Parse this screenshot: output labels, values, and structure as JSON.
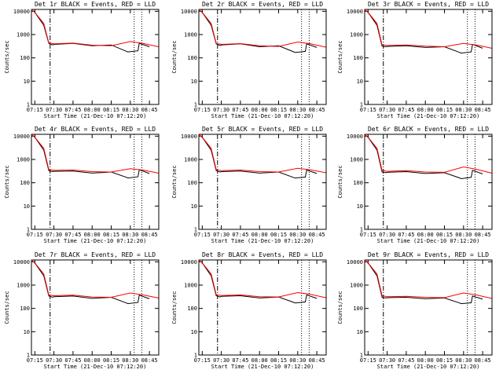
{
  "chart_data": [
    {
      "type": "line",
      "title": "Det 1r BLACK = Events, RED = LLD",
      "xlabel": "Start Time (21-Dec-10 07:12:20)",
      "ylabel": "Counts/sec",
      "x_ticks": [
        "07:15",
        "07:30",
        "07:45",
        "08:00",
        "08:15",
        "08:30",
        "08:45"
      ],
      "y_ticks": [
        "1",
        "10",
        "100",
        "1000",
        "10000"
      ],
      "y_scale": "log",
      "xlim": [
        "07:12:20",
        "08:52:20"
      ],
      "ylim": [
        1,
        12000
      ],
      "events_x": [
        "07:15",
        "07:22",
        "07:26",
        "07:29",
        "07:30",
        "07:45",
        "08:00",
        "08:15",
        "08:27",
        "08:28",
        "08:36",
        "08:37",
        "08:45"
      ],
      "events_y": [
        9000,
        2500,
        420,
        360,
        380,
        420,
        330,
        360,
        190,
        180,
        200,
        420,
        300
      ],
      "lld_x": [
        "07:12:20",
        "07:15",
        "07:22",
        "07:26",
        "07:30",
        "07:45",
        "08:00",
        "08:15",
        "08:30",
        "08:40",
        "08:52"
      ],
      "lld_y": [
        12000,
        9000,
        3000,
        440,
        400,
        430,
        350,
        330,
        500,
        420,
        300
      ],
      "vlines": [
        {
          "x": "07:27",
          "style": "dash-dot"
        },
        {
          "x": "08:33",
          "style": "dotted"
        },
        {
          "x": "08:39",
          "style": "dotted"
        }
      ]
    },
    {
      "type": "line",
      "title": "Det 2r BLACK = Events, RED = LLD",
      "xlabel": "Start Time (21-Dec-10 07:12:20)",
      "ylabel": "Counts/sec",
      "x_ticks": [
        "07:15",
        "07:30",
        "07:45",
        "08:00",
        "08:15",
        "08:30",
        "08:45"
      ],
      "y_ticks": [
        "1",
        "10",
        "100",
        "1000",
        "10000"
      ],
      "y_scale": "log",
      "xlim": [
        "07:12:20",
        "08:52:20"
      ],
      "ylim": [
        1,
        12000
      ],
      "events_x": [
        "07:15",
        "07:22",
        "07:26",
        "07:29",
        "07:30",
        "07:45",
        "08:00",
        "08:15",
        "08:27",
        "08:28",
        "08:36",
        "08:37",
        "08:45"
      ],
      "events_y": [
        9000,
        2500,
        400,
        340,
        360,
        400,
        300,
        330,
        180,
        170,
        190,
        400,
        280
      ],
      "lld_x": [
        "07:12:20",
        "07:15",
        "07:22",
        "07:26",
        "07:30",
        "07:45",
        "08:00",
        "08:15",
        "08:30",
        "08:40",
        "08:52"
      ],
      "lld_y": [
        12000,
        9000,
        3000,
        420,
        380,
        410,
        330,
        310,
        480,
        400,
        290
      ],
      "vlines": [
        {
          "x": "07:27",
          "style": "dash-dot"
        },
        {
          "x": "08:33",
          "style": "dotted"
        },
        {
          "x": "08:39",
          "style": "dotted"
        }
      ]
    },
    {
      "type": "line",
      "title": "Det 3r BLACK = Events, RED = LLD",
      "xlabel": "Start Time (21-Dec-10 07:12:20)",
      "ylabel": "Counts/sec",
      "x_ticks": [
        "07:15",
        "07:30",
        "07:45",
        "08:00",
        "08:15",
        "08:30",
        "08:45"
      ],
      "y_ticks": [
        "1",
        "10",
        "100",
        "1000",
        "10000"
      ],
      "y_scale": "log",
      "xlim": [
        "07:12:20",
        "08:52:20"
      ],
      "ylim": [
        1,
        12000
      ],
      "events_x": [
        "07:15",
        "07:22",
        "07:26",
        "07:29",
        "07:30",
        "07:45",
        "08:00",
        "08:15",
        "08:27",
        "08:28",
        "08:36",
        "08:37",
        "08:45"
      ],
      "events_y": [
        9000,
        2500,
        320,
        300,
        310,
        330,
        280,
        300,
        170,
        160,
        180,
        380,
        260
      ],
      "lld_x": [
        "07:12:20",
        "07:15",
        "07:22",
        "07:26",
        "07:30",
        "07:45",
        "08:00",
        "08:15",
        "08:30",
        "08:40",
        "08:52"
      ],
      "lld_y": [
        12000,
        9000,
        3000,
        360,
        340,
        360,
        320,
        300,
        420,
        360,
        260
      ],
      "vlines": [
        {
          "x": "07:27",
          "style": "dash-dot"
        },
        {
          "x": "08:33",
          "style": "dotted"
        },
        {
          "x": "08:39",
          "style": "dotted"
        }
      ]
    },
    {
      "type": "line",
      "title": "Det 4r BLACK = Events, RED = LLD",
      "xlabel": "Start Time (21-Dec-10 07:12:20)",
      "ylabel": "Counts/sec",
      "x_ticks": [
        "07:15",
        "07:30",
        "07:45",
        "08:00",
        "08:15",
        "08:30",
        "08:45"
      ],
      "y_ticks": [
        "1",
        "10",
        "100",
        "1000",
        "10000"
      ],
      "y_scale": "log",
      "xlim": [
        "07:12:20",
        "08:52:20"
      ],
      "ylim": [
        1,
        12000
      ],
      "events_x": [
        "07:15",
        "07:22",
        "07:26",
        "07:29",
        "07:30",
        "07:45",
        "08:00",
        "08:15",
        "08:27",
        "08:28",
        "08:36",
        "08:37",
        "08:45"
      ],
      "events_y": [
        9000,
        2500,
        330,
        300,
        310,
        320,
        260,
        290,
        170,
        160,
        180,
        360,
        250
      ],
      "lld_x": [
        "07:12:20",
        "07:15",
        "07:22",
        "07:26",
        "07:30",
        "07:45",
        "08:00",
        "08:15",
        "08:30",
        "08:40",
        "08:52"
      ],
      "lld_y": [
        12000,
        9000,
        3000,
        370,
        340,
        350,
        300,
        290,
        400,
        350,
        260
      ],
      "vlines": [
        {
          "x": "07:27",
          "style": "dash-dot"
        },
        {
          "x": "08:33",
          "style": "dotted"
        },
        {
          "x": "08:39",
          "style": "dotted"
        }
      ]
    },
    {
      "type": "line",
      "title": "Det 5r BLACK = Events, RED = LLD",
      "xlabel": "Start Time (21-Dec-10 07:12:20)",
      "ylabel": "Counts/sec",
      "x_ticks": [
        "07:15",
        "07:30",
        "07:45",
        "08:00",
        "08:15",
        "08:30",
        "08:45"
      ],
      "y_ticks": [
        "1",
        "10",
        "100",
        "1000",
        "10000"
      ],
      "y_scale": "log",
      "xlim": [
        "07:12:20",
        "08:52:20"
      ],
      "ylim": [
        1,
        12000
      ],
      "events_x": [
        "07:15",
        "07:22",
        "07:26",
        "07:29",
        "07:30",
        "07:45",
        "08:00",
        "08:15",
        "08:27",
        "08:28",
        "08:36",
        "08:37",
        "08:45"
      ],
      "events_y": [
        9000,
        2500,
        330,
        290,
        300,
        320,
        260,
        290,
        165,
        160,
        175,
        350,
        250
      ],
      "lld_x": [
        "07:12:20",
        "07:15",
        "07:22",
        "07:26",
        "07:30",
        "07:45",
        "08:00",
        "08:15",
        "08:30",
        "08:40",
        "08:52"
      ],
      "lld_y": [
        12000,
        9000,
        3000,
        370,
        330,
        350,
        300,
        290,
        420,
        360,
        270
      ],
      "vlines": [
        {
          "x": "07:27",
          "style": "dash-dot"
        },
        {
          "x": "08:33",
          "style": "dotted"
        },
        {
          "x": "08:39",
          "style": "dotted"
        }
      ]
    },
    {
      "type": "line",
      "title": "Det 6r BLACK = Events, RED = LLD",
      "xlabel": "Start Time (21-Dec-10 07:12:20)",
      "ylabel": "Counts/sec",
      "x_ticks": [
        "07:15",
        "07:30",
        "07:45",
        "08:00",
        "08:15",
        "08:30",
        "08:45"
      ],
      "y_ticks": [
        "1",
        "10",
        "100",
        "1000",
        "10000"
      ],
      "y_scale": "log",
      "xlim": [
        "07:12:20",
        "08:52:20"
      ],
      "ylim": [
        1,
        12000
      ],
      "events_x": [
        "07:15",
        "07:22",
        "07:26",
        "07:29",
        "07:30",
        "07:45",
        "08:00",
        "08:15",
        "08:27",
        "08:28",
        "08:36",
        "08:37",
        "08:45"
      ],
      "events_y": [
        9000,
        2500,
        290,
        270,
        280,
        300,
        250,
        270,
        160,
        150,
        170,
        340,
        240
      ],
      "lld_x": [
        "07:12:20",
        "07:15",
        "07:22",
        "07:26",
        "07:30",
        "07:45",
        "08:00",
        "08:15",
        "08:30",
        "08:40",
        "08:52"
      ],
      "lld_y": [
        12000,
        9000,
        3000,
        340,
        310,
        330,
        290,
        280,
        480,
        380,
        260
      ],
      "vlines": [
        {
          "x": "07:27",
          "style": "dash-dot"
        },
        {
          "x": "08:33",
          "style": "dotted"
        },
        {
          "x": "08:39",
          "style": "dotted"
        }
      ]
    },
    {
      "type": "line",
      "title": "Det 7r BLACK = Events, RED = LLD",
      "xlabel": "Start Time (21-Dec-10 07:12:20)",
      "ylabel": "Counts/sec",
      "x_ticks": [
        "07:15",
        "07:30",
        "07:45",
        "08:00",
        "08:15",
        "08:30",
        "08:45"
      ],
      "y_ticks": [
        "1",
        "10",
        "100",
        "1000",
        "10000"
      ],
      "y_scale": "log",
      "xlim": [
        "07:12:20",
        "08:52:20"
      ],
      "ylim": [
        1,
        12000
      ],
      "events_x": [
        "07:15",
        "07:22",
        "07:26",
        "07:29",
        "07:30",
        "07:45",
        "08:00",
        "08:15",
        "08:27",
        "08:28",
        "08:36",
        "08:37",
        "08:45"
      ],
      "events_y": [
        9000,
        2500,
        340,
        300,
        320,
        340,
        270,
        300,
        170,
        160,
        180,
        370,
        260
      ],
      "lld_x": [
        "07:12:20",
        "07:15",
        "07:22",
        "07:26",
        "07:30",
        "07:45",
        "08:00",
        "08:15",
        "08:30",
        "08:40",
        "08:52"
      ],
      "lld_y": [
        12000,
        9000,
        3000,
        380,
        350,
        370,
        310,
        300,
        460,
        380,
        280
      ],
      "vlines": [
        {
          "x": "07:27",
          "style": "dash-dot"
        },
        {
          "x": "08:33",
          "style": "dotted"
        },
        {
          "x": "08:39",
          "style": "dotted"
        }
      ]
    },
    {
      "type": "line",
      "title": "Det 8r BLACK = Events, RED = LLD",
      "xlabel": "Start Time (21-Dec-10 07:12:20)",
      "ylabel": "Counts/sec",
      "x_ticks": [
        "07:15",
        "07:30",
        "07:45",
        "08:00",
        "08:15",
        "08:30",
        "08:45"
      ],
      "y_ticks": [
        "1",
        "10",
        "100",
        "1000",
        "10000"
      ],
      "y_scale": "log",
      "xlim": [
        "07:12:20",
        "08:52:20"
      ],
      "ylim": [
        1,
        12000
      ],
      "events_x": [
        "07:15",
        "07:22",
        "07:26",
        "07:29",
        "07:30",
        "07:45",
        "08:00",
        "08:15",
        "08:27",
        "08:28",
        "08:36",
        "08:37",
        "08:45"
      ],
      "events_y": [
        9000,
        2500,
        350,
        310,
        330,
        350,
        280,
        310,
        180,
        170,
        190,
        380,
        270
      ],
      "lld_x": [
        "07:12:20",
        "07:15",
        "07:22",
        "07:26",
        "07:30",
        "07:45",
        "08:00",
        "08:15",
        "08:30",
        "08:40",
        "08:52"
      ],
      "lld_y": [
        12000,
        9000,
        3000,
        390,
        360,
        380,
        320,
        310,
        480,
        400,
        290
      ],
      "vlines": [
        {
          "x": "07:27",
          "style": "dash-dot"
        },
        {
          "x": "08:33",
          "style": "dotted"
        },
        {
          "x": "08:39",
          "style": "dotted"
        }
      ]
    },
    {
      "type": "line",
      "title": "Det 9r BLACK = Events, RED = LLD",
      "xlabel": "Start Time (21-Dec-10 07:12:20)",
      "ylabel": "Counts/sec",
      "x_ticks": [
        "07:15",
        "07:30",
        "07:45",
        "08:00",
        "08:15",
        "08:30",
        "08:45"
      ],
      "y_ticks": [
        "1",
        "10",
        "100",
        "1000",
        "10000"
      ],
      "y_scale": "log",
      "xlim": [
        "07:12:20",
        "08:52:20"
      ],
      "ylim": [
        1,
        12000
      ],
      "events_x": [
        "07:15",
        "07:22",
        "07:26",
        "07:29",
        "07:30",
        "07:45",
        "08:00",
        "08:15",
        "08:27",
        "08:28",
        "08:36",
        "08:37",
        "08:45"
      ],
      "events_y": [
        9000,
        2500,
        300,
        280,
        290,
        300,
        260,
        280,
        170,
        160,
        175,
        340,
        250
      ],
      "lld_x": [
        "07:12:20",
        "07:15",
        "07:22",
        "07:26",
        "07:30",
        "07:45",
        "08:00",
        "08:15",
        "08:30",
        "08:40",
        "08:52"
      ],
      "lld_y": [
        12000,
        9000,
        3000,
        350,
        320,
        330,
        300,
        290,
        460,
        380,
        270
      ],
      "vlines": [
        {
          "x": "07:27",
          "style": "dash-dot"
        },
        {
          "x": "08:33",
          "style": "dotted"
        },
        {
          "x": "08:39",
          "style": "dotted"
        }
      ]
    }
  ],
  "colors": {
    "events": "#000000",
    "lld": "#ff0000",
    "background": "#ffffff"
  }
}
